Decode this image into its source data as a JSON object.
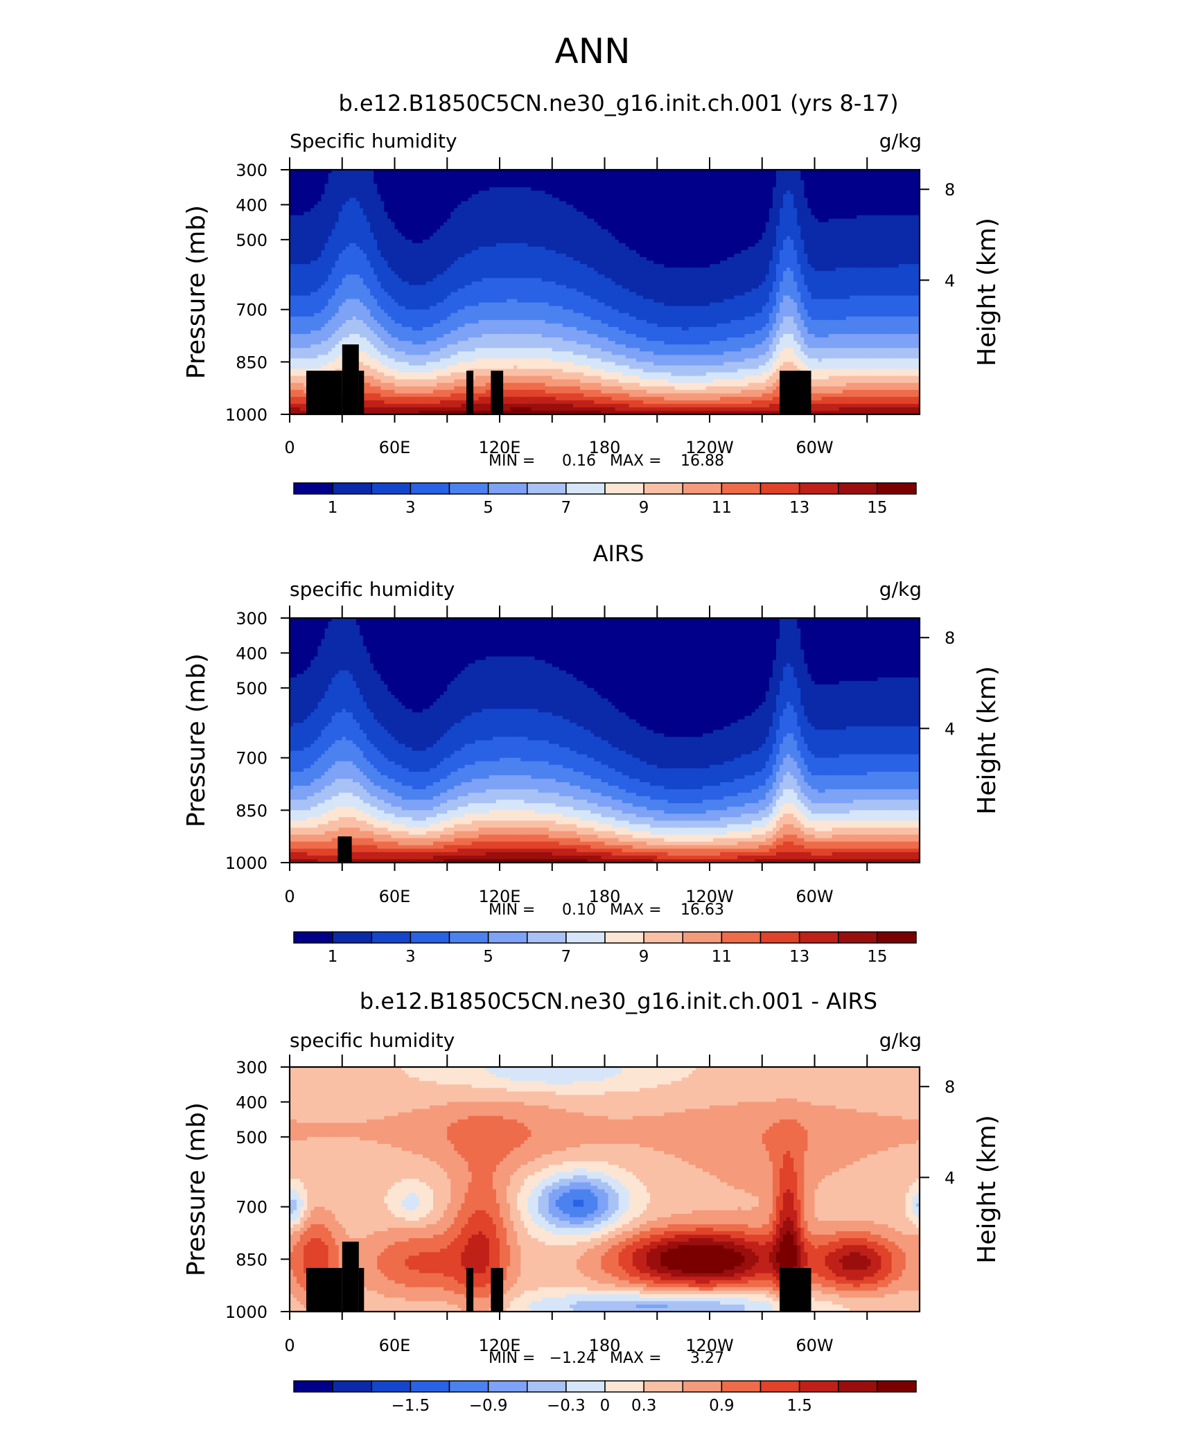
{
  "page": {
    "title": "ANN"
  },
  "palette": {
    "abs": [
      "#00008a",
      "#0a2aaa",
      "#1446cc",
      "#2a62e6",
      "#4c82f0",
      "#7ea2f5",
      "#a9c2f6",
      "#d6e6f8",
      "#fde5d4",
      "#f9c0a6",
      "#f59a7a",
      "#ee6c4a",
      "#e0422a",
      "#bf2018",
      "#9a0e0e",
      "#7a0000"
    ],
    "diff": [
      "#00008a",
      "#0a2aaa",
      "#1446cc",
      "#2a62e6",
      "#4c82f0",
      "#7ea2f5",
      "#a9c2f6",
      "#d6e6f8",
      "#fde5d4",
      "#f9c0a6",
      "#f59a7a",
      "#ee6c4a",
      "#e0422a",
      "#bf2018",
      "#9a0e0e",
      "#7a0000"
    ],
    "land": "#000000"
  },
  "chart_data": [
    {
      "type": "heatmap",
      "title": "b.e12.B1850C5CN.ne30_g16.init.ch.001 (yrs 8-17)",
      "left_label": "Specific humidity",
      "right_label": "g/kg",
      "ylabel": "Pressure (mb)",
      "ylabel_right": "Height (km)",
      "yticks": [
        "300",
        "400",
        "500",
        "700",
        "850",
        "1000"
      ],
      "yticks_right": [
        "8",
        "4"
      ],
      "xticks": [
        "0",
        "60E",
        "120E",
        "180",
        "120W",
        "60W"
      ],
      "stats": {
        "min_label": "MIN =",
        "min": "0.16",
        "max_label": "MAX =",
        "max": "16.88"
      },
      "colorbar_labels": [
        "1",
        "3",
        "5",
        "7",
        "9",
        "11",
        "13",
        "15"
      ],
      "colorbar_palette": "abs",
      "field": "model",
      "land": "model"
    },
    {
      "type": "heatmap",
      "title": "AIRS",
      "left_label": "specific humidity",
      "right_label": "g/kg",
      "ylabel": "Pressure (mb)",
      "ylabel_right": "Height (km)",
      "yticks": [
        "300",
        "400",
        "500",
        "700",
        "850",
        "1000"
      ],
      "yticks_right": [
        "8",
        "4"
      ],
      "xticks": [
        "0",
        "60E",
        "120E",
        "180",
        "120W",
        "60W"
      ],
      "stats": {
        "min_label": "MIN =",
        "min": "0.10",
        "max_label": "MAX =",
        "max": "16.63"
      },
      "colorbar_labels": [
        "1",
        "3",
        "5",
        "7",
        "9",
        "11",
        "13",
        "15"
      ],
      "colorbar_palette": "abs",
      "field": "obs",
      "land": "obs"
    },
    {
      "type": "heatmap",
      "title": "b.e12.B1850C5CN.ne30_g16.init.ch.001 - AIRS",
      "left_label": "specific humidity",
      "right_label": "g/kg",
      "ylabel": "Pressure (mb)",
      "ylabel_right": "Height (km)",
      "yticks": [
        "300",
        "400",
        "500",
        "700",
        "850",
        "1000"
      ],
      "yticks_right": [
        "8",
        "4"
      ],
      "xticks": [
        "0",
        "60E",
        "120E",
        "180",
        "120W",
        "60W"
      ],
      "stats": {
        "min_label": "MIN =",
        "min": "−1.24",
        "max_label": "MAX =",
        "max": "3.27"
      },
      "colorbar_labels": [
        "−1.5",
        "−0.9",
        "−0.3",
        "0",
        "0.3",
        "0.9",
        "1.5"
      ],
      "colorbar_palette": "diff",
      "field": "diff",
      "land": "model"
    }
  ]
}
